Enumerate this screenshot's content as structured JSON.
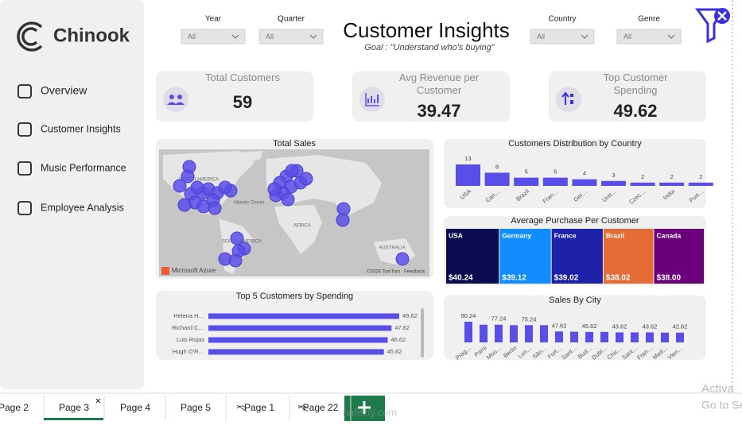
{
  "sidebar": {
    "logo": "Chinook",
    "nav": [
      "Overview",
      "Customer Insights",
      "Music Performance",
      "Employee Analysis"
    ]
  },
  "filters": [
    {
      "label": "Year",
      "value": "All"
    },
    {
      "label": "Quarter",
      "value": "All"
    },
    {
      "label": "Country",
      "value": "All"
    },
    {
      "label": "Genre",
      "value": "All"
    }
  ],
  "header": {
    "title": "Customer Insights",
    "subtitle": "Goal : \"Understand who's buying\""
  },
  "kpis": [
    {
      "label": "Total Customers",
      "value": 59
    },
    {
      "label": "Avg Revenue per Customer",
      "value": 39.47
    },
    {
      "label": "Top Customer Spending",
      "value": 49.62
    }
  ],
  "map": {
    "title": "Total Sales",
    "labels": [
      "NORTH AMERICA",
      "Atlantic Ocean",
      "AFRICA",
      "SOUTH AMERICA",
      "AUSTRALIA"
    ],
    "attribution": "Microsoft Azure",
    "copyright": "©2026 TomTom",
    "feedback": "Feedback"
  },
  "chart_data": [
    {
      "type": "bar",
      "title": "Customers Distribution by Country",
      "categories": [
        "USA",
        "Can…",
        "Brazil",
        "Fran…",
        "Ger…",
        "Unit…",
        "Czec…",
        "India",
        "Port…"
      ],
      "values": [
        13,
        8,
        5,
        5,
        4,
        3,
        2,
        2,
        2
      ],
      "color": "#5a4ee8"
    },
    {
      "type": "treemap",
      "title": "Average Purchase Per Customer",
      "categories": [
        "USA",
        "Germany",
        "France",
        "Brazil",
        "Canada"
      ],
      "values": [
        40.24,
        39.12,
        39.02,
        38.02,
        38.0
      ],
      "value_labels": [
        "$40.24",
        "$39.12",
        "$39.02",
        "$38.02",
        "$38.00"
      ],
      "colors": [
        "#0c0c52",
        "#118dff",
        "#1e22a8",
        "#e66c37",
        "#6b007b"
      ]
    },
    {
      "type": "bar",
      "orientation": "horizontal",
      "title": "Top 5 Customers by Spending",
      "categories": [
        "Helena H…",
        "Richard C…",
        "Luis Rojas",
        "Hugh O'R…"
      ],
      "values": [
        49.62,
        47.62,
        46.62,
        45.62
      ],
      "color": "#5a4ee8"
    },
    {
      "type": "bar",
      "title": "Sales By City",
      "categories": [
        "Prag…",
        "Paris",
        "Mou…",
        "Berlin",
        "Lon…",
        "São…",
        "Fort…",
        "Sant…",
        "Bud…",
        "Dubl…",
        "Chic…",
        "Sant…",
        "Fran…",
        "Mad…",
        "Vien…"
      ],
      "values": [
        90.24,
        77.24,
        77.24,
        75.24,
        75.24,
        75.24,
        47.62,
        46.62,
        45.62,
        45.62,
        43.62,
        43.62,
        43.62,
        42.62,
        42.62
      ],
      "color": "#5a4ee8"
    }
  ],
  "tabs": [
    "Page 2",
    "Page 3",
    "Page 4",
    "Page 5",
    "Page 1",
    "Page 22"
  ],
  "watermark": [
    "Activa",
    "Go to Se",
    "nafezly.com"
  ]
}
